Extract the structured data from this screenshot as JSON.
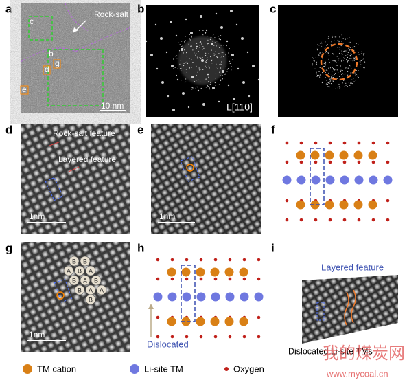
{
  "panels": {
    "a": {
      "label": "a",
      "annotations": [
        "Rock-salt",
        "c",
        "b",
        "d",
        "g",
        "e"
      ],
      "scale_bar": "10 nm"
    },
    "b": {
      "label": "b",
      "zone_axis": "L[11̄0]"
    },
    "c": {
      "label": "c"
    },
    "d": {
      "label": "d",
      "annotations": [
        "Rock-salt feature",
        "Layered feature"
      ],
      "scale_bar": "1nm"
    },
    "e": {
      "label": "e",
      "scale_bar": "1nm"
    },
    "f": {
      "label": "f"
    },
    "g": {
      "label": "g",
      "stacking": [
        "B",
        "B",
        "A",
        "B",
        "A",
        "B",
        "A",
        "B",
        "B",
        "A",
        "A",
        "B"
      ],
      "scale_bar": "1nm"
    },
    "h": {
      "label": "h",
      "annotation": "Dislocated"
    },
    "i": {
      "label": "i",
      "annotations": [
        "Layered feature",
        "Dislocated Li-site TMs"
      ]
    }
  },
  "legend": [
    "TM cation",
    "Li-site TM",
    "Oxygen"
  ],
  "watermark": {
    "name": "我的煤炭网",
    "url": "www.mycoal.cn"
  }
}
